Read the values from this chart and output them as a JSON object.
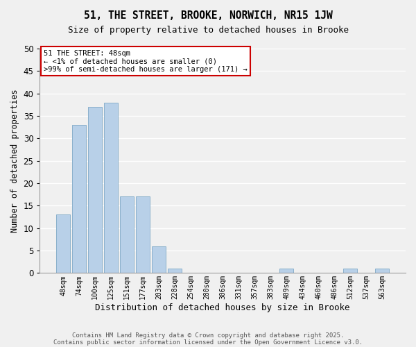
{
  "title": "51, THE STREET, BROOKE, NORWICH, NR15 1JW",
  "subtitle": "Size of property relative to detached houses in Brooke",
  "xlabel": "Distribution of detached houses by size in Brooke",
  "ylabel": "Number of detached properties",
  "bar_color": "#b8d0e8",
  "bar_edge_color": "#8ab0cc",
  "highlight_bar_edge_color": "#cc0000",
  "background_color": "#f0f0f0",
  "grid_color": "#ffffff",
  "categories": [
    "48sqm",
    "74sqm",
    "100sqm",
    "125sqm",
    "151sqm",
    "177sqm",
    "203sqm",
    "228sqm",
    "254sqm",
    "280sqm",
    "306sqm",
    "331sqm",
    "357sqm",
    "383sqm",
    "409sqm",
    "434sqm",
    "460sqm",
    "486sqm",
    "512sqm",
    "537sqm",
    "563sqm"
  ],
  "values": [
    13,
    33,
    37,
    38,
    17,
    17,
    6,
    1,
    0,
    0,
    0,
    0,
    0,
    0,
    1,
    0,
    0,
    0,
    1,
    0,
    1
  ],
  "highlight_index": 0,
  "ylim": [
    0,
    50
  ],
  "yticks": [
    0,
    5,
    10,
    15,
    20,
    25,
    30,
    35,
    40,
    45,
    50
  ],
  "annotation_line1": "51 THE STREET: 48sqm",
  "annotation_line2": "← <1% of detached houses are smaller (0)",
  "annotation_line3": ">99% of semi-detached houses are larger (171) →",
  "footnote1": "Contains HM Land Registry data © Crown copyright and database right 2025.",
  "footnote2": "Contains public sector information licensed under the Open Government Licence v3.0."
}
